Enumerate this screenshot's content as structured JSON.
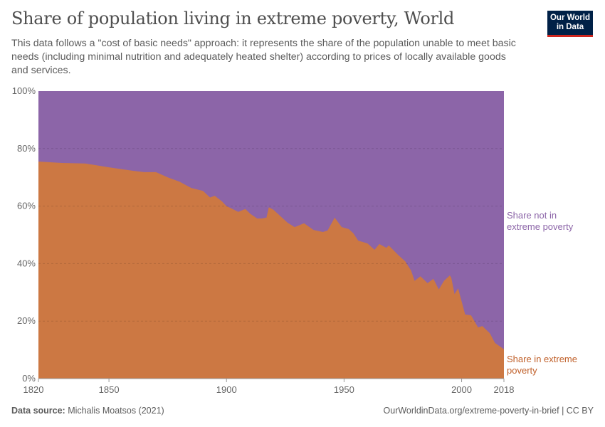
{
  "title": "Share of population living in extreme poverty, World",
  "subtitle": "This data follows a \"cost of basic needs\" approach: it represents the share of the population unable to meet basic needs (including minimal nutrition and adequately heated shelter) according to prices of locally available goods and services.",
  "logo": {
    "line1": "Our World",
    "line2": "in Data",
    "bg": "#002147",
    "accent": "#ce261e"
  },
  "footer": {
    "source_label": "Data source:",
    "source": "Michalis Moatsos (2021)",
    "url": "OurWorldinData.org/extreme-poverty-in-brief | CC BY"
  },
  "chart_data": {
    "type": "area",
    "stacked": true,
    "xlim": [
      1820,
      2018
    ],
    "ylim": [
      0,
      100
    ],
    "x_ticks": [
      "1820",
      "1850",
      "1900",
      "1950",
      "2000",
      "2018"
    ],
    "y_ticks": [
      "0%",
      "20%",
      "40%",
      "60%",
      "80%",
      "100%"
    ],
    "grid": "horizontal dashed",
    "legend": "right, inline labels",
    "x": [
      1820,
      1830,
      1840,
      1850,
      1860,
      1865,
      1870,
      1875,
      1880,
      1885,
      1890,
      1893,
      1895,
      1898,
      1900,
      1902,
      1905,
      1908,
      1910,
      1913,
      1915,
      1917,
      1918,
      1920,
      1926,
      1929,
      1933,
      1937,
      1941,
      1943,
      1946,
      1949,
      1952,
      1954,
      1956,
      1960,
      1963,
      1965,
      1968,
      1969,
      1973,
      1976,
      1978.5,
      1980,
      1982.5,
      1985.5,
      1988,
      1990.3,
      1992.5,
      1995,
      1995.6,
      1997,
      1998.5,
      2001.5,
      2004,
      2007,
      2008.8,
      2012,
      2014.2,
      2018
    ],
    "series": [
      {
        "name": "Share in extreme poverty",
        "color": "#cc7843",
        "values": [
          75.5,
          75,
          74.8,
          73.5,
          72.3,
          71.8,
          71.8,
          70,
          68.5,
          66.3,
          65.3,
          63,
          63.6,
          61.7,
          60,
          59.2,
          58,
          59,
          57.4,
          55.7,
          55.7,
          56,
          59.6,
          58.7,
          54.2,
          52.7,
          54,
          51.7,
          51,
          51.5,
          56,
          52.7,
          52,
          50.5,
          48,
          47,
          44.8,
          46.8,
          45.5,
          46.3,
          43,
          40.8,
          37.6,
          34,
          35.6,
          33.2,
          34.7,
          31,
          34,
          35.9,
          35.1,
          29.4,
          31.4,
          22.3,
          22,
          17.8,
          18.3,
          15.8,
          12.4,
          10.2
        ]
      },
      {
        "name": "Share not in extreme poverty",
        "color": "#8c65a8"
      }
    ],
    "labels": {
      "poverty": [
        "Share in extreme",
        "poverty"
      ],
      "not_poverty": [
        "Share not in",
        "extreme poverty"
      ]
    }
  }
}
